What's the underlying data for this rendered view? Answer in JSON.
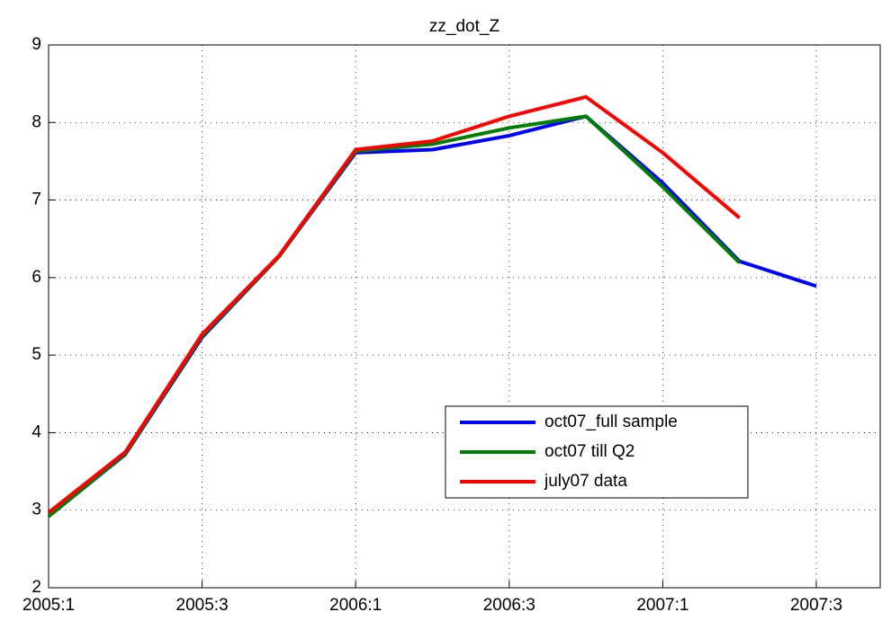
{
  "chart_data": {
    "type": "line",
    "title": "zz_dot_Z",
    "categories": [
      "2005:1",
      null,
      "2005:3",
      null,
      "2006:1",
      null,
      "2006:3",
      null,
      "2007:1",
      null,
      "2007:3"
    ],
    "series": [
      {
        "name": "oct07_full sample",
        "color": "#0000ff",
        "values": [
          2.92,
          3.72,
          5.23,
          6.27,
          7.61,
          7.65,
          7.83,
          8.08,
          7.22,
          6.21,
          5.89
        ]
      },
      {
        "name": "oct07 till Q2",
        "color": "#008000",
        "values": [
          2.92,
          3.73,
          5.25,
          6.27,
          7.63,
          7.72,
          7.93,
          8.08,
          7.17,
          6.19,
          null
        ]
      },
      {
        "name": "july07 data",
        "color": "#ff0000",
        "values": [
          2.97,
          3.75,
          5.27,
          6.28,
          7.65,
          7.76,
          8.08,
          8.33,
          7.61,
          6.77,
          null
        ]
      }
    ],
    "ylim": [
      2,
      9
    ],
    "yticks": [
      2,
      3,
      4,
      5,
      6,
      7,
      8,
      9
    ],
    "grid": true
  }
}
